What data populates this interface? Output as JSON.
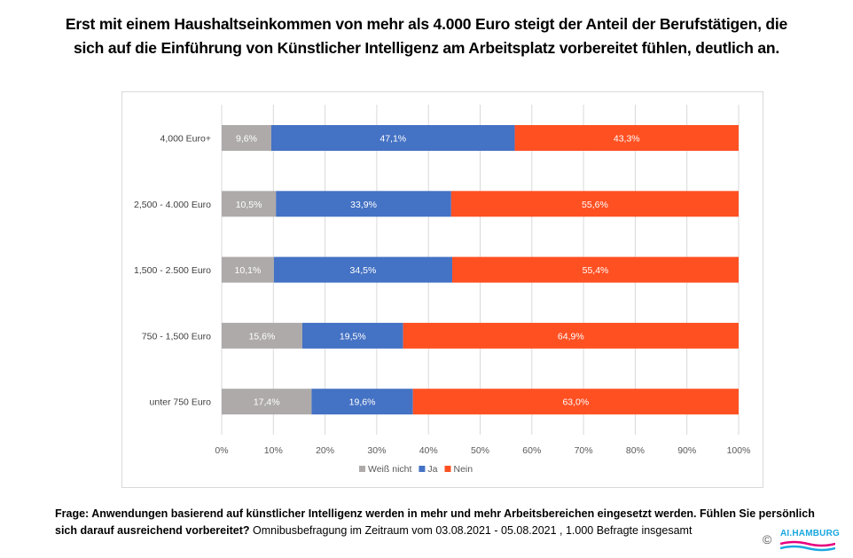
{
  "title": {
    "line1": "Erst mit einem Haushaltseinkommen von mehr als 4.000 Euro steigt der Anteil der Berufstätigen, die",
    "line2": "sich auf die Einführung von Künstlicher Intelligenz am Arbeitsplatz vorbereitet fühlen, deutlich an."
  },
  "chart_data": {
    "type": "bar",
    "orientation": "horizontal",
    "stacked": "100%",
    "title": "Erst mit einem Haushaltseinkommen von mehr als 4.000 Euro steigt der Anteil der Berufstätigen, die sich auf die Einführung von Künstlicher Intelligenz am Arbeitsplatz vorbereitet fühlen, deutlich an.",
    "xlabel": "",
    "ylabel": "",
    "xlim": [
      0,
      100
    ],
    "x_ticks": [
      "0%",
      "10%",
      "20%",
      "30%",
      "40%",
      "50%",
      "60%",
      "70%",
      "80%",
      "90%",
      "100%"
    ],
    "grid": true,
    "legend_position": "bottom",
    "categories": [
      "4,000 Euro+",
      "2,500 - 4.000 Euro",
      "1,500 -  2.500 Euro",
      "750 - 1,500 Euro",
      "unter 750 Euro"
    ],
    "series": [
      {
        "name": "Weiß nicht",
        "color": "#aeaaaa",
        "values": [
          9.6,
          10.5,
          10.1,
          15.6,
          17.4
        ],
        "labels": [
          "9,6%",
          "10,5%",
          "10,1%",
          "15,6%",
          "17,4%"
        ]
      },
      {
        "name": "Ja",
        "color": "#4472c4",
        "values": [
          47.1,
          33.9,
          34.5,
          19.5,
          19.6
        ],
        "labels": [
          "47,1%",
          "33,9%",
          "34,5%",
          "19,5%",
          "19,6%"
        ]
      },
      {
        "name": "Nein",
        "color": "#ff5022",
        "values": [
          43.3,
          55.6,
          55.4,
          64.9,
          63.0
        ],
        "labels": [
          "43,3%",
          "55,6%",
          "55,4%",
          "64,9%",
          "63,0%"
        ]
      }
    ]
  },
  "footer": {
    "question_bold": "Frage: Anwendungen basierend auf künstlicher Intelligenz werden in mehr und mehr Arbeitsbereichen eingesetzt werden. Fühlen Sie persönlich sich darauf ausreichend vorbereitet?",
    "survey_info": " Omnibusbefragung im Zeitraum vom 03.08.2021 - 05.08.2021 , 1.000 Befragte insgesamt"
  },
  "logo": {
    "copyright": "©",
    "text_part1": "AI.",
    "text_part2": "HAMBURG"
  }
}
